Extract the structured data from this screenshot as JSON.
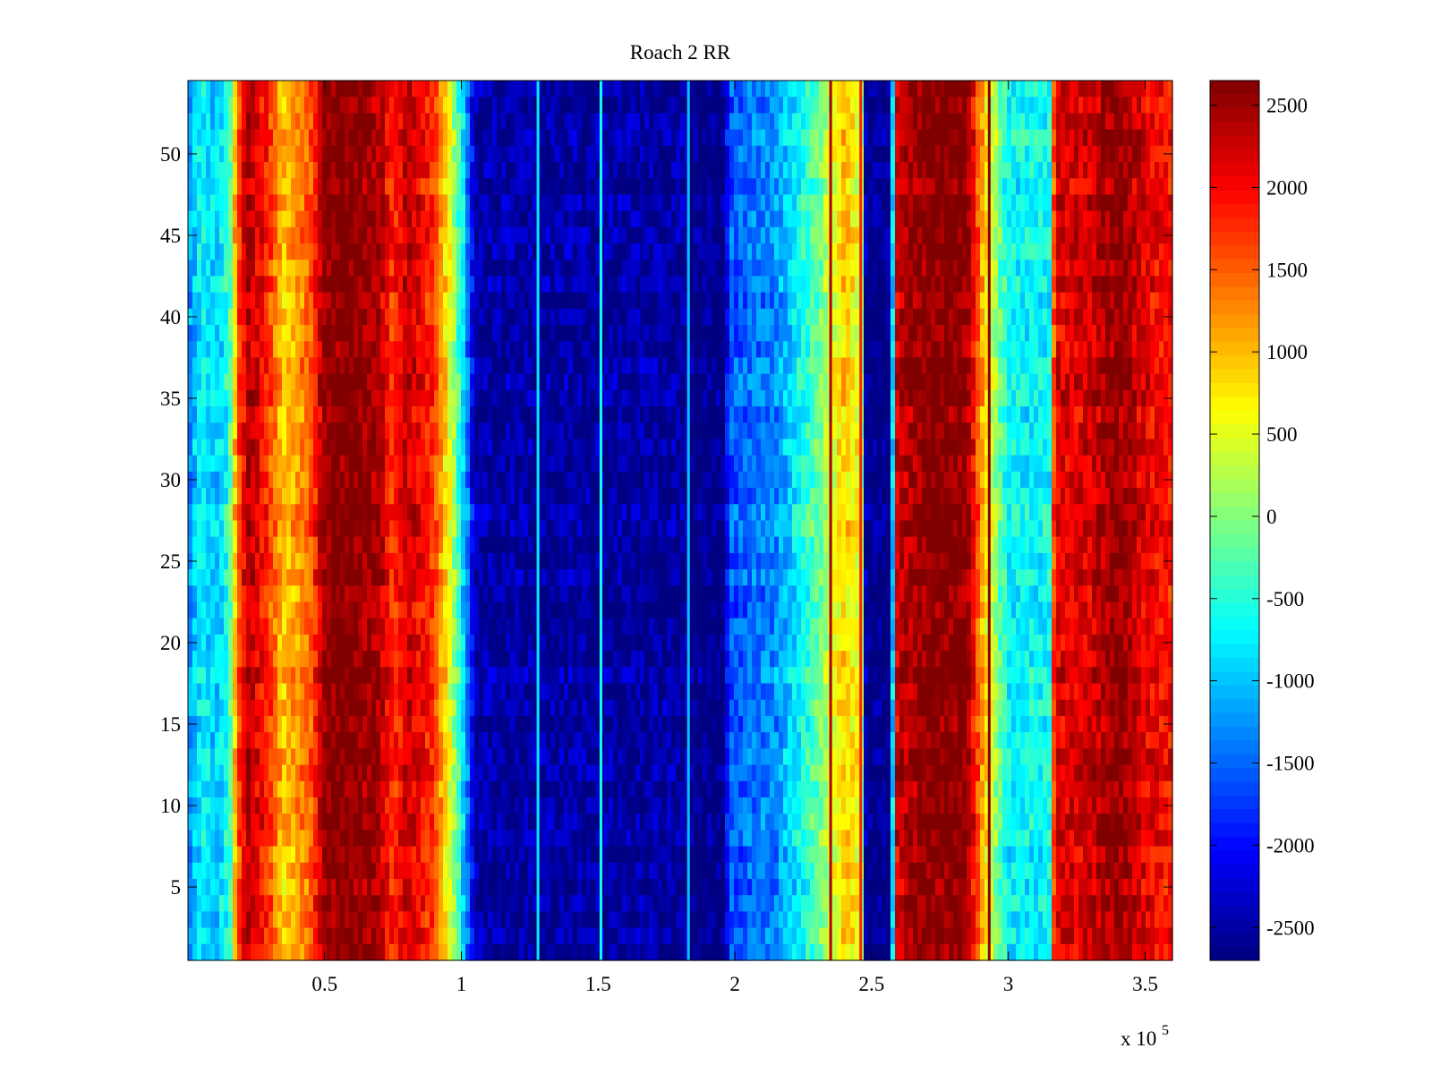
{
  "chart_data": {
    "type": "heatmap",
    "title": "Roach 2 RR",
    "xlabel": "",
    "ylabel": "",
    "x_multiplier_label": "x 10",
    "x_multiplier_exponent": "5",
    "xlim": [
      0.0,
      3.6
    ],
    "ylim": [
      0.5,
      54.5
    ],
    "x_ticks": [
      {
        "value": 0.5,
        "label": "0.5"
      },
      {
        "value": 1.0,
        "label": "1"
      },
      {
        "value": 1.5,
        "label": "1.5"
      },
      {
        "value": 2.0,
        "label": "2"
      },
      {
        "value": 2.5,
        "label": "2.5"
      },
      {
        "value": 3.0,
        "label": "3"
      },
      {
        "value": 3.5,
        "label": "3.5"
      }
    ],
    "y_ticks": [
      {
        "value": 5,
        "label": "5"
      },
      {
        "value": 10,
        "label": "10"
      },
      {
        "value": 15,
        "label": "15"
      },
      {
        "value": 20,
        "label": "20"
      },
      {
        "value": 25,
        "label": "25"
      },
      {
        "value": 30,
        "label": "30"
      },
      {
        "value": 35,
        "label": "35"
      },
      {
        "value": 40,
        "label": "40"
      },
      {
        "value": 45,
        "label": "45"
      },
      {
        "value": 50,
        "label": "50"
      }
    ],
    "rows": 54,
    "clim": [
      -2700,
      2650
    ],
    "colormap": "jet",
    "colorbar_ticks": [
      {
        "value": 2500,
        "label": "2500"
      },
      {
        "value": 2000,
        "label": "2000"
      },
      {
        "value": 1500,
        "label": "1500"
      },
      {
        "value": 1000,
        "label": "1000"
      },
      {
        "value": 500,
        "label": "500"
      },
      {
        "value": 0,
        "label": "0"
      },
      {
        "value": -500,
        "label": "-500"
      },
      {
        "value": -1000,
        "label": "-1000"
      },
      {
        "value": -1500,
        "label": "-1500"
      },
      {
        "value": -2000,
        "label": "-2000"
      },
      {
        "value": -2500,
        "label": "-2500"
      }
    ],
    "column_profile": [
      [
        0.0,
        -1300
      ],
      [
        0.05,
        -700
      ],
      [
        0.1,
        -1000
      ],
      [
        0.15,
        -500
      ],
      [
        0.18,
        1500
      ],
      [
        0.22,
        2400
      ],
      [
        0.28,
        1900
      ],
      [
        0.35,
        900
      ],
      [
        0.45,
        1500
      ],
      [
        0.5,
        2600
      ],
      [
        0.6,
        2650
      ],
      [
        0.7,
        2400
      ],
      [
        0.75,
        1700
      ],
      [
        0.8,
        2300
      ],
      [
        0.9,
        1700
      ],
      [
        0.97,
        200
      ],
      [
        1.02,
        -1300
      ],
      [
        1.05,
        -2500
      ],
      [
        1.5,
        -2550
      ],
      [
        1.82,
        -2550
      ],
      [
        1.84,
        -2700
      ],
      [
        1.96,
        -2700
      ],
      [
        1.98,
        -1600
      ],
      [
        2.15,
        -1300
      ],
      [
        2.3,
        -200
      ],
      [
        2.4,
        900
      ],
      [
        2.46,
        500
      ],
      [
        2.48,
        -2700
      ],
      [
        2.57,
        -2700
      ],
      [
        2.59,
        2200
      ],
      [
        2.7,
        2650
      ],
      [
        2.85,
        2600
      ],
      [
        2.92,
        700
      ],
      [
        3.0,
        -700
      ],
      [
        3.15,
        -700
      ],
      [
        3.17,
        2100
      ],
      [
        3.3,
        2200
      ],
      [
        3.4,
        2600
      ],
      [
        3.5,
        2100
      ],
      [
        3.6,
        1900
      ]
    ],
    "vertical_lines": [
      {
        "x": 1.28,
        "value": -800
      },
      {
        "x": 1.51,
        "value": -600
      },
      {
        "x": 1.83,
        "value": -1000
      },
      {
        "x": 2.35,
        "value": 2400
      },
      {
        "x": 2.46,
        "value": 1800
      },
      {
        "x": 2.93,
        "value": 2600
      }
    ]
  }
}
